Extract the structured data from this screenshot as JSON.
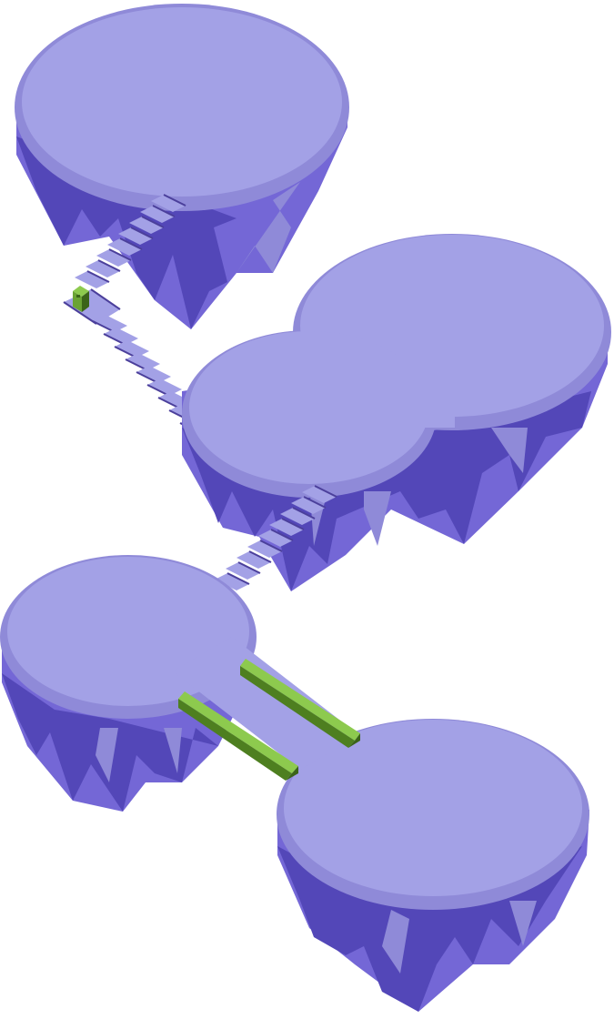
{
  "scene": {
    "background": "#ffffff",
    "palette": {
      "top_face": "#a3a1e6",
      "top_rim": "#8f8ad8",
      "cliff_light": "#8f8ad8",
      "cliff_mid": "#7467d6",
      "cliff_dark": "#5347b8",
      "stair_top": "#a3a1e6",
      "stair_edge": "#4b3f9b",
      "bridge_top": "#8dca4e",
      "bridge_side": "#4e7f20",
      "bridge_dark": "#3b6419",
      "character_body": "#6aa334",
      "character_dark": "#3b6419"
    },
    "islands": [
      "top-left",
      "middle-right",
      "left",
      "bottom-right"
    ],
    "stairs": [
      "upper-stairs",
      "lower-stairs"
    ],
    "bridges": [
      "green-bridge-upper",
      "green-bridge-lower"
    ],
    "character": "player-block"
  }
}
